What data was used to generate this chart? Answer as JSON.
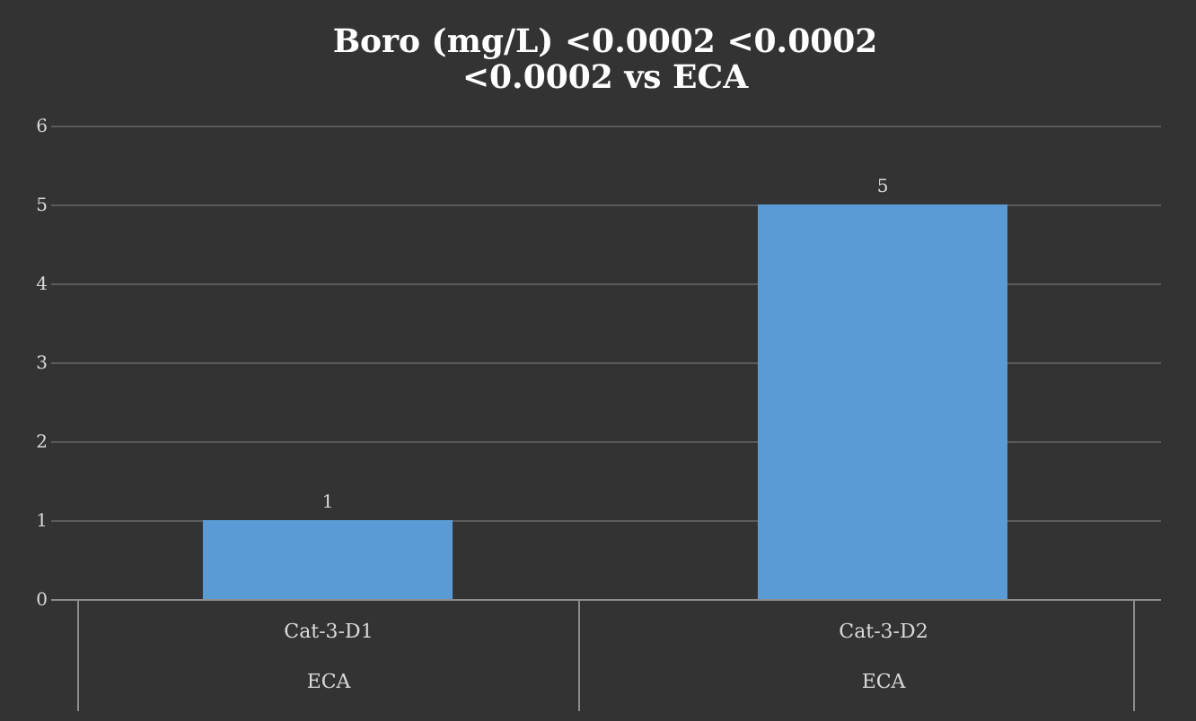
{
  "chart_data": {
    "type": "bar",
    "title": "Boro (mg/L) <0.0002 <0.0002 <0.0002 vs ECA",
    "categories": [
      "Cat-3-D1\nECA",
      "Cat-3-D2\nECA"
    ],
    "values": [
      1,
      5
    ],
    "color": "#5b9bd5",
    "ylim": [
      0,
      6
    ],
    "yticks": [
      0,
      1,
      2,
      3,
      4,
      5,
      6
    ],
    "grid": "y",
    "data_labels": true
  }
}
